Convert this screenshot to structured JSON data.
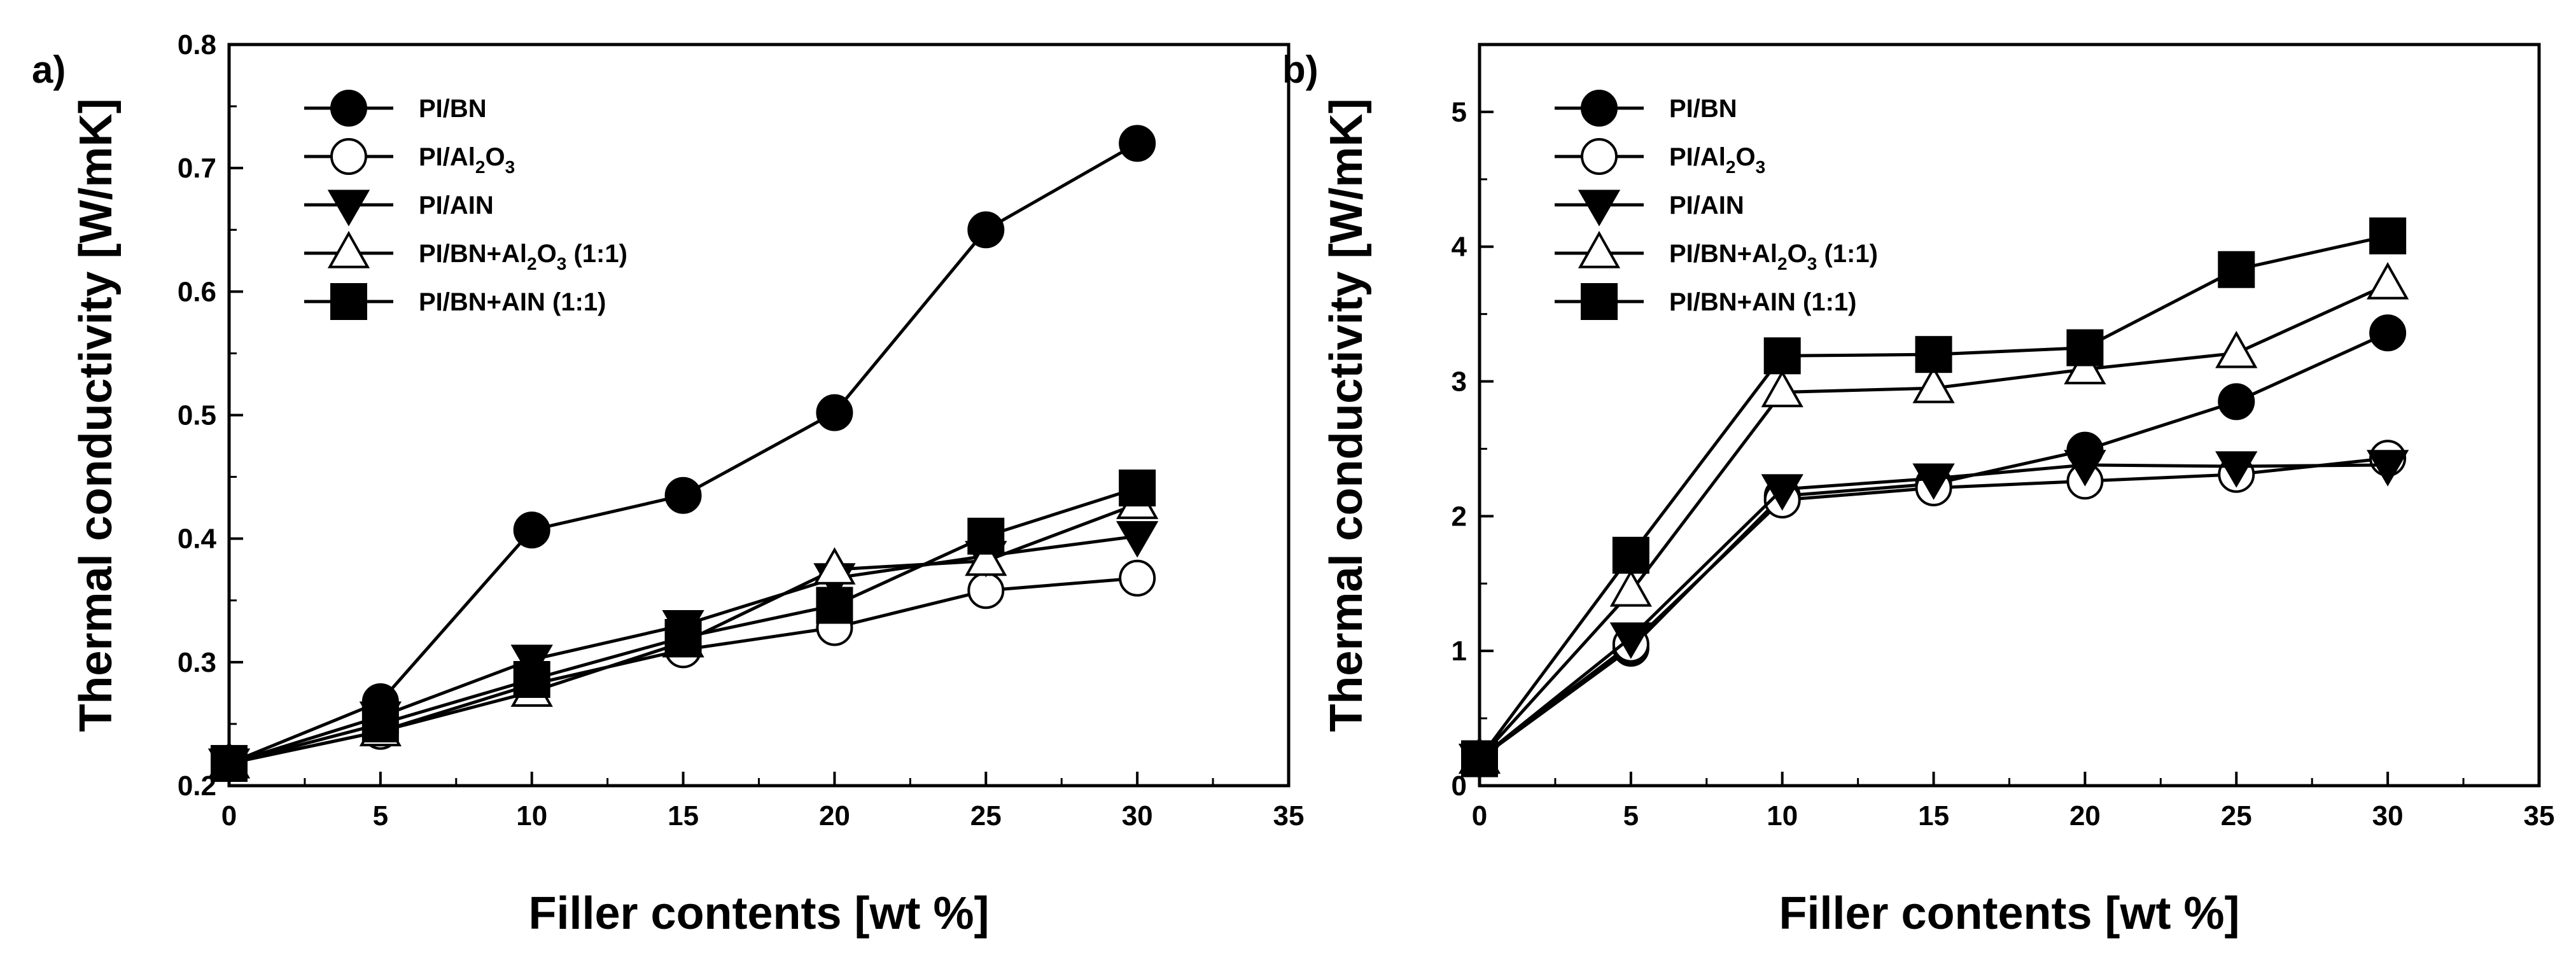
{
  "chart_data": [
    {
      "type": "line",
      "panel_label": "a)",
      "xlabel": "Filler contents [wt %]",
      "ylabel": "Thermal conductivity [W/mK]",
      "xlim": [
        0,
        35
      ],
      "ylim": [
        0.2,
        0.8
      ],
      "xticks": [
        "0",
        "5",
        "10",
        "15",
        "20",
        "25",
        "30",
        "35"
      ],
      "yticks": [
        "0.2",
        "0.3",
        "0.4",
        "0.5",
        "0.6",
        "0.7",
        "0.8"
      ],
      "legend_position": "top-left",
      "grid": false,
      "x": [
        0,
        5,
        10,
        15,
        20,
        25,
        30
      ],
      "series": [
        {
          "name": "PI/BN",
          "label": "PI/BN",
          "marker": "filled-circle",
          "values": [
            0.218,
            0.268,
            0.407,
            0.435,
            0.502,
            0.65,
            0.72
          ]
        },
        {
          "name": "PI/Al2O3",
          "label": "PI/Al",
          "sub": "2",
          "suffix": "O",
          "sub2": "3",
          "tail": "",
          "marker": "open-circle",
          "values": [
            0.218,
            0.244,
            0.282,
            0.31,
            0.328,
            0.358,
            0.368
          ]
        },
        {
          "name": "PI/AIN",
          "label": "PI/AIN",
          "marker": "filled-triangle-down",
          "values": [
            0.218,
            0.256,
            0.302,
            0.33,
            0.368,
            0.386,
            0.402
          ]
        },
        {
          "name": "PI/BN+Al2O3 (1:1)",
          "label": "PI/BN+Al",
          "sub": "2",
          "suffix": "O",
          "sub2": "3",
          "tail": " (1:1)",
          "marker": "open-triangle-up",
          "values": [
            0.218,
            0.244,
            0.276,
            0.316,
            0.375,
            0.382,
            0.428
          ]
        },
        {
          "name": "PI/BN+AIN (1:1)",
          "label": "PI/BN+AIN (1:1)",
          "marker": "filled-square",
          "values": [
            0.218,
            0.25,
            0.286,
            0.32,
            0.346,
            0.402,
            0.441
          ]
        }
      ]
    },
    {
      "type": "line",
      "panel_label": "b)",
      "xlabel": "Filler contents [wt %]",
      "ylabel": "Thermal conductivity [W/mK]",
      "xlim": [
        0,
        35
      ],
      "ylim": [
        0,
        5.5
      ],
      "xticks": [
        "0",
        "5",
        "10",
        "15",
        "20",
        "25",
        "30",
        "35"
      ],
      "yticks": [
        "0",
        "1",
        "2",
        "3",
        "4",
        "5"
      ],
      "legend_position": "top-left",
      "grid": false,
      "x": [
        0,
        5,
        10,
        15,
        20,
        25,
        30
      ],
      "series": [
        {
          "name": "PI/BN",
          "label": "PI/BN",
          "marker": "filled-circle",
          "values": [
            0.2,
            1.02,
            2.15,
            2.24,
            2.49,
            2.85,
            3.36
          ]
        },
        {
          "name": "PI/Al2O3",
          "label": "PI/Al",
          "sub": "2",
          "suffix": "O",
          "sub2": "3",
          "tail": "",
          "marker": "open-circle",
          "values": [
            0.2,
            1.05,
            2.12,
            2.21,
            2.26,
            2.31,
            2.43
          ]
        },
        {
          "name": "PI/AIN",
          "label": "PI/AIN",
          "marker": "filled-triangle-down",
          "values": [
            0.2,
            1.1,
            2.2,
            2.28,
            2.38,
            2.37,
            2.38
          ]
        },
        {
          "name": "PI/BN+Al2O3 (1:1)",
          "label": "PI/BN+Al",
          "sub": "2",
          "suffix": "O",
          "sub2": "3",
          "tail": " (1:1)",
          "marker": "open-triangle-up",
          "values": [
            0.2,
            1.44,
            2.92,
            2.95,
            3.09,
            3.21,
            3.72
          ]
        },
        {
          "name": "PI/BN+AIN (1:1)",
          "label": "PI/BN+AIN (1:1)",
          "marker": "filled-square",
          "values": [
            0.2,
            1.71,
            3.19,
            3.2,
            3.25,
            3.83,
            4.08
          ]
        }
      ]
    }
  ]
}
